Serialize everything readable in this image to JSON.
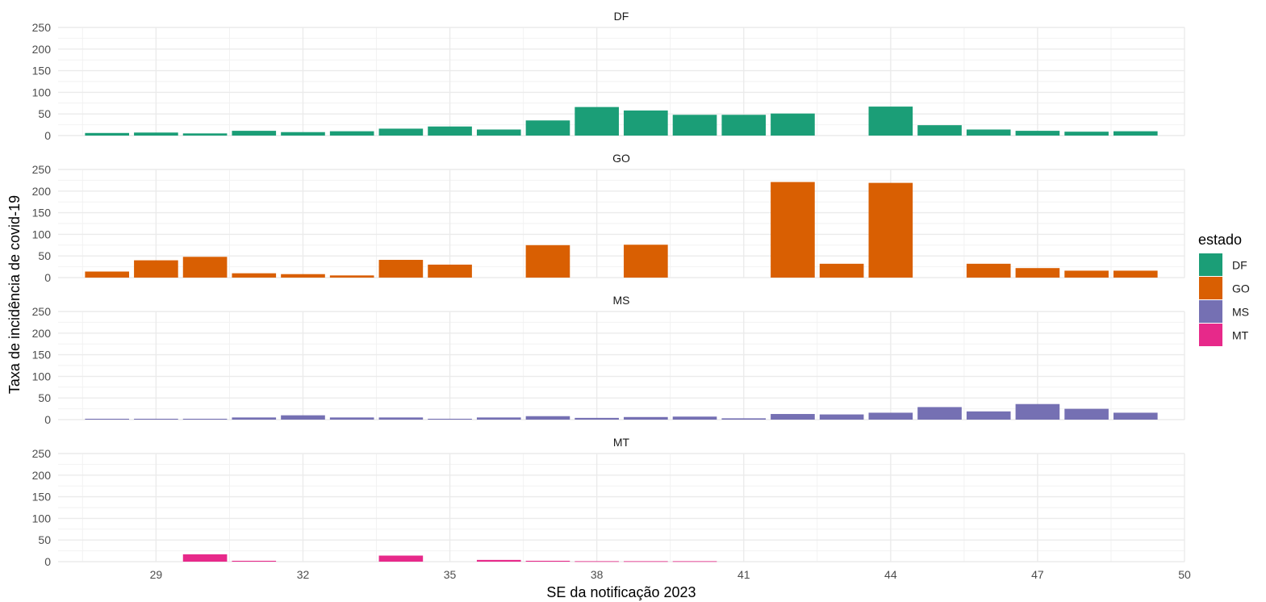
{
  "chart_data": {
    "type": "bar",
    "layout": "faceted-vertical",
    "xlabel": "SE da notificação 2023",
    "ylabel": "Taxa de incidência de covid-19",
    "x": [
      28,
      29,
      30,
      31,
      32,
      33,
      34,
      35,
      36,
      37,
      38,
      39,
      40,
      41,
      42,
      43,
      44,
      45,
      46,
      47,
      48,
      49
    ],
    "xlim": [
      27,
      50
    ],
    "xticks": [
      29,
      32,
      35,
      38,
      41,
      44,
      47,
      50
    ],
    "ylim": [
      0,
      250
    ],
    "yticks": [
      0,
      50,
      100,
      150,
      200,
      250
    ],
    "grid": true,
    "legend": {
      "title": "estado",
      "position": "right",
      "entries": [
        "DF",
        "GO",
        "MS",
        "MT"
      ]
    },
    "series": [
      {
        "name": "DF",
        "color": "#1b9e77",
        "values": [
          6,
          7,
          5,
          11,
          8,
          10,
          16,
          21,
          14,
          35,
          66,
          58,
          48,
          48,
          51,
          null,
          67,
          24,
          14,
          11,
          9,
          10
        ]
      },
      {
        "name": "GO",
        "color": "#d95f02",
        "values": [
          14,
          40,
          48,
          10,
          8,
          5,
          41,
          30,
          null,
          75,
          null,
          76,
          null,
          null,
          221,
          32,
          219,
          null,
          32,
          22,
          16,
          16
        ]
      },
      {
        "name": "MS",
        "color": "#7570b3",
        "values": [
          2,
          2,
          2,
          5,
          10,
          5,
          5,
          2,
          5,
          8,
          4,
          6,
          7,
          3,
          13,
          12,
          16,
          29,
          19,
          36,
          25,
          16
        ]
      },
      {
        "name": "MT",
        "color": "#e7298a",
        "values": [
          null,
          null,
          17,
          2,
          null,
          null,
          14,
          null,
          4,
          2,
          1,
          1,
          1,
          null,
          null,
          null,
          null,
          null,
          null,
          null,
          null,
          null
        ]
      }
    ]
  }
}
